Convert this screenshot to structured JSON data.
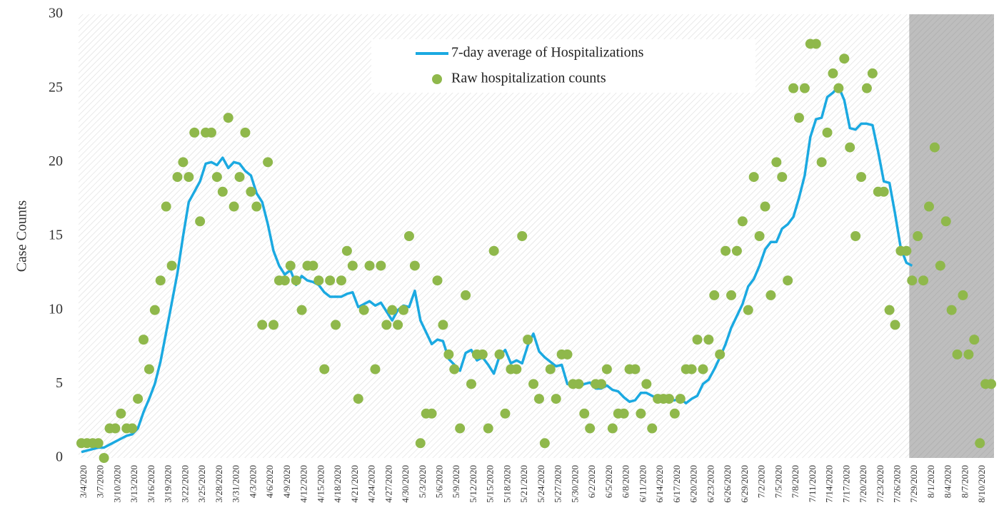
{
  "chart_data": {
    "type": "combo",
    "ylabel": "Case Counts",
    "ylim": [
      0,
      30
    ],
    "yticks": [
      0,
      5,
      10,
      15,
      20,
      25,
      30
    ],
    "grid": false,
    "legend": "upper center",
    "shade_from": "7/29/2020",
    "categories": [
      "3/4/2020",
      null,
      null,
      "3/7/2020",
      null,
      null,
      "3/10/2020",
      null,
      null,
      "3/13/2020",
      null,
      null,
      "3/16/2020",
      null,
      null,
      "3/19/2020",
      null,
      null,
      "3/22/2020",
      null,
      null,
      "3/25/2020",
      null,
      null,
      "3/28/2020",
      null,
      null,
      "3/31/2020",
      null,
      null,
      "4/3/2020",
      null,
      null,
      "4/6/2020",
      null,
      null,
      "4/9/2020",
      null,
      null,
      "4/12/2020",
      null,
      null,
      "4/15/2020",
      null,
      null,
      "4/18/2020",
      null,
      null,
      "4/21/2020",
      null,
      null,
      "4/24/2020",
      null,
      null,
      "4/27/2020",
      null,
      null,
      "4/30/2020",
      null,
      null,
      "5/3/2020",
      null,
      null,
      "5/6/2020",
      null,
      null,
      "5/9/2020",
      null,
      null,
      "5/12/2020",
      null,
      null,
      "5/15/2020",
      null,
      null,
      "5/18/2020",
      null,
      null,
      "5/21/2020",
      null,
      null,
      "5/24/2020",
      null,
      null,
      "5/27/2020",
      null,
      null,
      "5/30/2020",
      null,
      null,
      "6/2/2020",
      null,
      null,
      "6/5/2020",
      null,
      null,
      "6/8/2020",
      null,
      null,
      "6/11/2020",
      null,
      null,
      "6/14/2020",
      null,
      null,
      "6/17/2020",
      null,
      null,
      "6/20/2020",
      null,
      null,
      "6/23/2020",
      null,
      null,
      "6/26/2020",
      null,
      null,
      "6/29/2020",
      null,
      null,
      "7/2/2020",
      null,
      null,
      "7/5/2020",
      null,
      null,
      "7/8/2020",
      null,
      null,
      "7/11/2020",
      null,
      null,
      "7/14/2020",
      null,
      null,
      "7/17/2020",
      null,
      null,
      "7/20/2020",
      null,
      null,
      "7/23/2020",
      null,
      null,
      "7/26/2020",
      null,
      null,
      "7/29/2020",
      null,
      null,
      "8/1/2020",
      null,
      null,
      "8/4/2020",
      null,
      null,
      "8/7/2020",
      null,
      null,
      "8/10/2020",
      null,
      null
    ],
    "series": [
      {
        "name": "7-day average of Hospitalizations",
        "type": "line",
        "color": "#1ba9e1",
        "values": [
          0.4,
          0.5,
          0.6,
          0.7,
          0.7,
          0.9,
          1.1,
          1.3,
          1.5,
          1.6,
          2,
          3.1,
          4,
          5,
          6.5,
          8.5,
          10.5,
          12.5,
          15,
          17.3,
          18,
          18.7,
          19.9,
          20,
          19.8,
          20.3,
          19.6,
          20,
          19.9,
          19.4,
          19.1,
          17.9,
          17.3,
          15.8,
          14,
          13,
          12.4,
          12.7,
          11.7,
          12.3,
          12,
          11.9,
          11.7,
          11.2,
          10.9,
          10.9,
          10.9,
          11.1,
          11.2,
          10.2,
          10.4,
          10.6,
          10.3,
          10.5,
          9.9,
          9.3,
          10,
          10.3,
          10.2,
          11.3,
          9.3,
          8.5,
          7.7,
          8,
          7.9,
          6.7,
          6.3,
          5.9,
          7.1,
          7.3,
          6.6,
          6.8,
          6.3,
          5.7,
          6.9,
          7.3,
          6.4,
          6.6,
          6.4,
          7.6,
          8.4,
          7.2,
          6.8,
          6.5,
          6.2,
          6.3,
          5,
          4.9,
          4.8,
          5,
          5.1,
          4.7,
          4.7,
          4.9,
          4.6,
          4.5,
          4.1,
          3.8,
          3.9,
          4.4,
          4.4,
          4.2,
          4,
          3.9,
          3.9,
          3.9,
          4,
          3.7,
          4,
          4.2,
          5,
          5.3,
          6,
          6.8,
          7.7,
          8.8,
          9.6,
          10.4,
          11.6,
          12.1,
          13,
          14.1,
          14.6,
          14.6,
          15.5,
          15.8,
          16.3,
          17.6,
          19.1,
          21.7,
          22.9,
          23,
          24.4,
          24.7,
          25.1,
          24.2,
          22.3,
          22.2,
          22.6,
          22.6,
          22.5,
          20.7,
          18.7,
          18.6,
          16.5,
          14.2,
          13.2,
          13,
          null,
          null,
          null,
          null,
          null,
          null,
          null,
          null,
          null,
          null,
          null,
          null,
          null,
          null
        ]
      },
      {
        "name": "Raw hospitalization counts",
        "type": "scatter",
        "color": "#8fb84b",
        "values": [
          1,
          1,
          1,
          1,
          0,
          2,
          2,
          3,
          2,
          2,
          4,
          8,
          6,
          10,
          12,
          17,
          13,
          19,
          20,
          19,
          22,
          16,
          22,
          22,
          19,
          18,
          23,
          17,
          19,
          22,
          18,
          17,
          9,
          20,
          9,
          12,
          12,
          13,
          12,
          10,
          13,
          13,
          12,
          6,
          12,
          9,
          12,
          14,
          13,
          4,
          10,
          13,
          6,
          13,
          9,
          10,
          9,
          10,
          15,
          13,
          1,
          3,
          3,
          12,
          9,
          7,
          6,
          2,
          11,
          5,
          7,
          7,
          2,
          14,
          7,
          3,
          6,
          6,
          15,
          8,
          5,
          4,
          1,
          6,
          4,
          7,
          7,
          5,
          5,
          3,
          2,
          5,
          5,
          6,
          2,
          3,
          3,
          6,
          6,
          3,
          5,
          2,
          4,
          4,
          4,
          3,
          4,
          6,
          6,
          8,
          6,
          8,
          11,
          7,
          14,
          11,
          14,
          16,
          10,
          19,
          15,
          17,
          11,
          20,
          19,
          12,
          25,
          23,
          25,
          28,
          28,
          20,
          22,
          26,
          25,
          27,
          21,
          15,
          19,
          25,
          26,
          18,
          18,
          10,
          9,
          14,
          14,
          12,
          15,
          12,
          17,
          21,
          13,
          16,
          10,
          7,
          11,
          7,
          8,
          1,
          5,
          5
        ]
      }
    ]
  }
}
